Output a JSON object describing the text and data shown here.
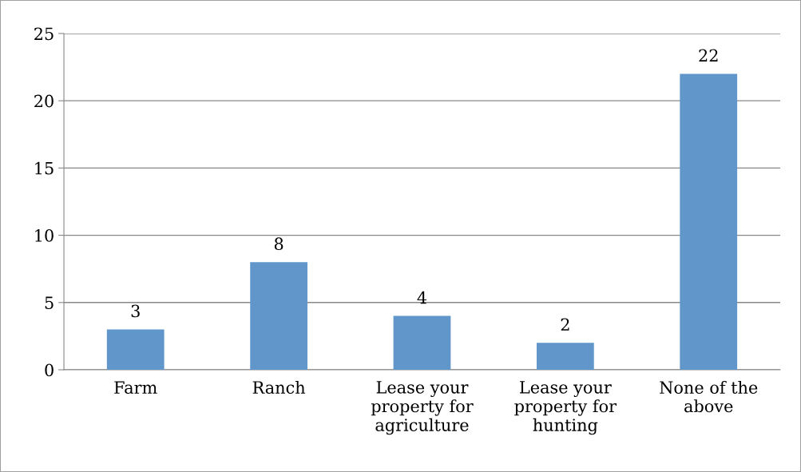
{
  "chart_data": {
    "type": "bar",
    "categories": [
      "Farm",
      "Ranch",
      "Lease your\nproperty for\nagriculture",
      "Lease your\nproperty for\nhunting",
      "None of the\nabove"
    ],
    "values": [
      3,
      8,
      4,
      2,
      22
    ],
    "color": "#6096c9",
    "ylim": [
      0,
      25
    ],
    "yticks": [
      0,
      5,
      10,
      15,
      20,
      25
    ],
    "grid": "y",
    "data_labels": true
  }
}
